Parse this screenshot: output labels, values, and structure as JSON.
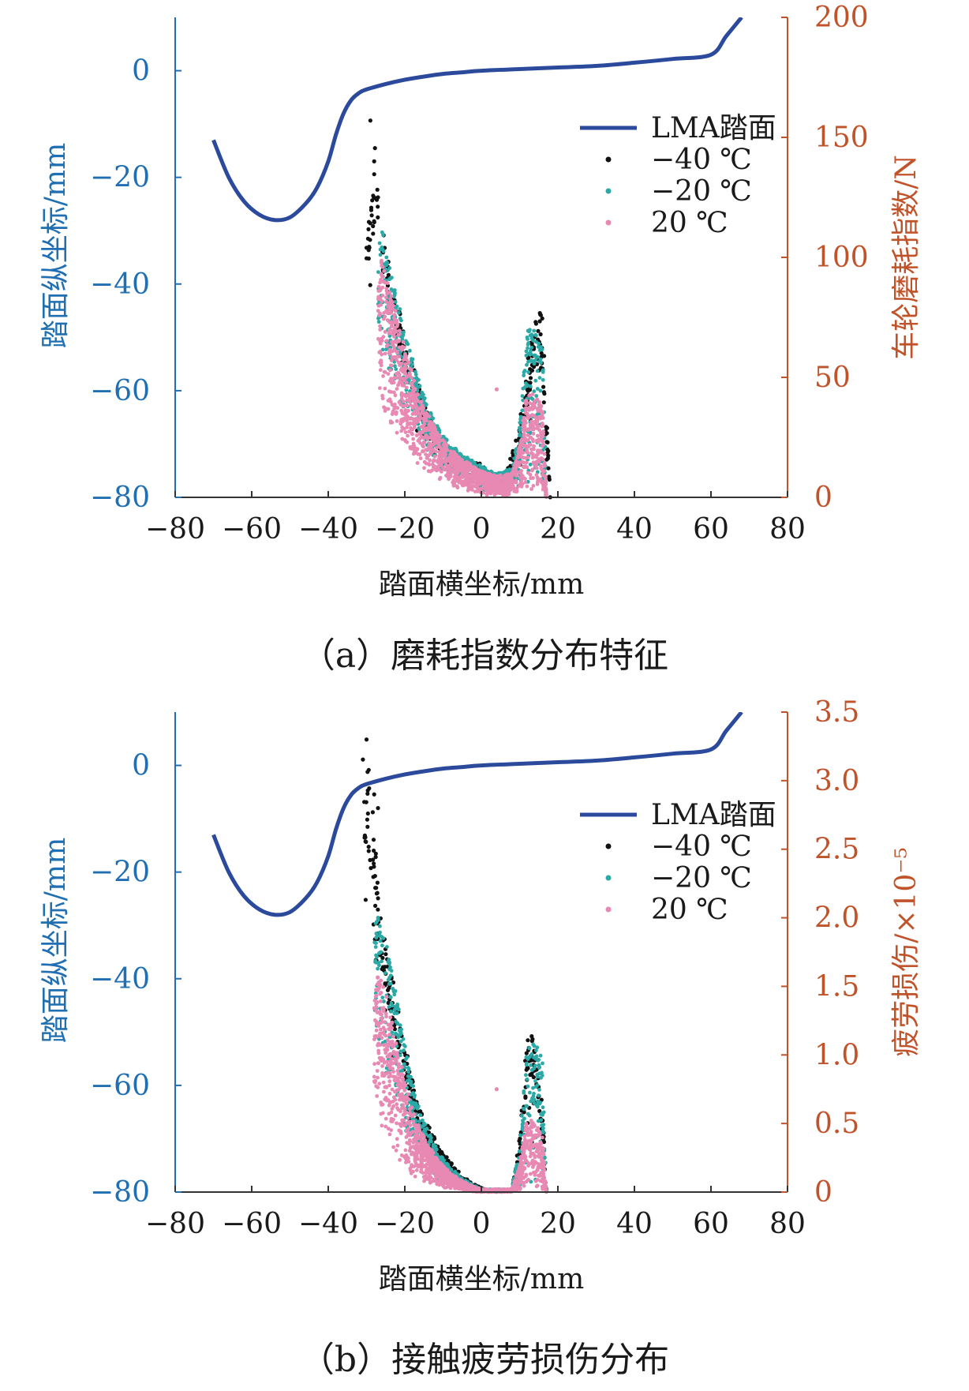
{
  "chart_data": [
    {
      "type": "line+scatter",
      "caption": "（a）磨耗指数分布特征",
      "xlabel": "踏面横坐标/mm",
      "ylabel_left": "踏面纵坐标/mm",
      "ylabel_right": "车轮磨耗指数/N",
      "xlim": [
        -80,
        80
      ],
      "ylim_left": [
        -80,
        10
      ],
      "ylim_right": [
        0,
        200
      ],
      "x_ticks": [
        "−80",
        "−60",
        "−40",
        "−20",
        "0",
        "20",
        "40",
        "60",
        "80"
      ],
      "y_left_ticks": [
        "0",
        "−20",
        "−40",
        "−60",
        "−80"
      ],
      "y_right_ticks": [
        "200",
        "150",
        "100",
        "50",
        "0"
      ],
      "legend": {
        "placement": "top-right",
        "entries": [
          "LMA踏面",
          "−40 ℃",
          "−20 ℃",
          "20 ℃"
        ]
      },
      "colors": {
        "profile": "#2b4a9c",
        "s40": "#111111",
        "s20": "#2aa9a6",
        "p20": "#e889b3",
        "left_axis": "#1f6fb2",
        "right_axis": "#c0532a"
      },
      "profile_series": {
        "name": "LMA踏面",
        "x": [
          -70,
          -66,
          -62,
          -58,
          -54,
          -50,
          -46,
          -43,
          -40,
          -38,
          -36,
          -34,
          -32,
          -30,
          -25,
          -20,
          -15,
          -10,
          -5,
          0,
          10,
          20,
          30,
          40,
          50,
          60,
          64,
          68
        ],
        "y": [
          -13,
          -20,
          -24.5,
          -27,
          -28,
          -27.5,
          -25,
          -22,
          -17,
          -12,
          -8,
          -5.5,
          -4.2,
          -3.5,
          -2.5,
          -1.7,
          -1.1,
          -0.6,
          -0.3,
          0,
          0.3,
          0.6,
          0.9,
          1.5,
          2.2,
          3,
          6.5,
          10
        ]
      },
      "scatter_series": [
        {
          "name": "−40 ℃",
          "envelope": {
            "x": [
              -30,
              -28,
              -26,
              -24,
              -22,
              -20,
              -17,
              -14,
              -11,
              -8,
              -5,
              -2,
              0,
              2,
              4,
              6,
              8,
              10,
              12,
              14,
              16,
              18
            ],
            "upper": [
              105,
              156,
              120,
              98,
              82,
              68,
              50,
              35,
              26,
              20,
              17,
              15,
              14,
              10,
              9,
              10,
              18,
              32,
              58,
              82,
              76,
              0
            ],
            "lower": [
              60,
              55,
              48,
              42,
              36,
              30,
              22,
              16,
              11,
              8,
              6,
              4,
              3,
              2,
              1.5,
              1.5,
              2,
              3,
              4,
              5,
              3,
              0
            ]
          }
        },
        {
          "name": "−20 ℃",
          "envelope": {
            "x": [
              -27,
              -26,
              -24,
              -22,
              -20,
              -17,
              -14,
              -11,
              -8,
              -5,
              -2,
              0,
              4,
              8,
              10,
              12,
              14,
              16,
              17
            ],
            "upper": [
              105,
              112,
              98,
              85,
              70,
              52,
              38,
              28,
              22,
              18,
              15,
              13,
              10,
              12,
              30,
              72,
              70,
              64,
              0
            ],
            "lower": [
              70,
              60,
              50,
              42,
              34,
              25,
              18,
              12,
              8,
              6,
              4,
              3,
              2,
              2,
              3,
              5,
              6,
              4,
              0
            ]
          }
        },
        {
          "name": "20 ℃",
          "envelope": {
            "x": [
              -27,
              -26,
              -24,
              -22,
              -20,
              -17,
              -14,
              -11,
              -8,
              -5,
              -2,
              0,
              4,
              8,
              10,
              12,
              14,
              16,
              17
            ],
            "upper": [
              85,
              100,
              88,
              75,
              62,
              47,
              35,
              26,
              20,
              16,
              13,
              11,
              9,
              10,
              22,
              45,
              44,
              38,
              0
            ],
            "lower": [
              40,
              35,
              30,
              25,
              20,
              14,
              10,
              7,
              5,
              3,
              2,
              1,
              0.5,
              0.5,
              1,
              2,
              3,
              2,
              0
            ]
          }
        }
      ]
    },
    {
      "type": "line+scatter",
      "caption": "（b）接触疲劳损伤分布",
      "xlabel": "踏面横坐标/mm",
      "ylabel_left": "踏面纵坐标/mm",
      "ylabel_right": "疲劳损伤/×10⁻⁵",
      "xlim": [
        -80,
        80
      ],
      "ylim_left": [
        -80,
        10
      ],
      "ylim_right": [
        0,
        3.5
      ],
      "x_ticks": [
        "−80",
        "−60",
        "−40",
        "−20",
        "0",
        "20",
        "40",
        "60",
        "80"
      ],
      "y_left_ticks": [
        "0",
        "−20",
        "−40",
        "−60",
        "−80"
      ],
      "y_right_ticks": [
        "3.5",
        "3.0",
        "2.5",
        "2.0",
        "1.5",
        "1.0",
        "0.5",
        "0"
      ],
      "legend": {
        "placement": "top-right",
        "entries": [
          "LMA踏面",
          "−40 ℃",
          "−20 ℃",
          "20 ℃"
        ]
      },
      "colors": {
        "profile": "#2b4a9c",
        "s40": "#111111",
        "s20": "#2aa9a6",
        "p20": "#e889b3",
        "left_axis": "#1f6fb2",
        "right_axis": "#c0532a"
      },
      "profile_series": {
        "name": "LMA踏面",
        "x": [
          -70,
          -66,
          -62,
          -58,
          -54,
          -50,
          -46,
          -43,
          -40,
          -38,
          -36,
          -34,
          -32,
          -30,
          -25,
          -20,
          -15,
          -10,
          -5,
          0,
          10,
          20,
          30,
          40,
          50,
          60,
          64,
          68
        ],
        "y": [
          -13,
          -20,
          -24.5,
          -27,
          -28,
          -27.5,
          -25,
          -22,
          -17,
          -12,
          -8,
          -5.5,
          -4.2,
          -3.5,
          -2.5,
          -1.7,
          -1.1,
          -0.6,
          -0.3,
          0,
          0.3,
          0.6,
          0.9,
          1.5,
          2.2,
          3,
          6.5,
          10
        ]
      },
      "scatter_series": [
        {
          "name": "−40 ℃",
          "envelope": {
            "x": [
              -31,
              -29,
              -27,
              -25,
              -23,
              -21,
              -19,
              -17,
              -14,
              -11,
              -8,
              -5,
              -2,
              0,
              2,
              4,
              6,
              8,
              10,
              12,
              14,
              16,
              17
            ],
            "upper": [
              3.2,
              3.05,
              2.25,
              1.85,
              1.55,
              1.25,
              0.95,
              0.7,
              0.5,
              0.32,
              0.22,
              0.12,
              0.06,
              0.03,
              0.01,
              0.01,
              0.01,
              0.01,
              0.4,
              1.2,
              1.25,
              0.6,
              0
            ],
            "lower": [
              1.6,
              1.2,
              0.95,
              0.75,
              0.6,
              0.45,
              0.3,
              0.2,
              0.12,
              0.08,
              0.05,
              0.03,
              0.01,
              0,
              0,
              0,
              0,
              0,
              0.02,
              0.05,
              0.05,
              0.03,
              0
            ]
          }
        },
        {
          "name": "−20 ℃",
          "envelope": {
            "x": [
              -28,
              -27,
              -25,
              -23,
              -21,
              -19,
              -17,
              -14,
              -11,
              -8,
              -5,
              -2,
              0,
              8,
              10,
              12,
              14,
              16,
              17
            ],
            "upper": [
              1.9,
              2.05,
              1.85,
              1.55,
              1.25,
              0.92,
              0.68,
              0.45,
              0.28,
              0.18,
              0.1,
              0.05,
              0.02,
              0.02,
              0.35,
              1.1,
              1.08,
              1.0,
              0
            ],
            "lower": [
              1.2,
              1.05,
              0.85,
              0.68,
              0.5,
              0.35,
              0.25,
              0.15,
              0.08,
              0.05,
              0.03,
              0.01,
              0,
              0,
              0.02,
              0.05,
              0.05,
              0.03,
              0
            ]
          }
        },
        {
          "name": "20 ℃",
          "envelope": {
            "x": [
              -28,
              -27,
              -25,
              -23,
              -21,
              -19,
              -17,
              -14,
              -11,
              -8,
              -5,
              -2,
              0,
              8,
              10,
              12,
              14,
              16,
              17
            ],
            "upper": [
              1.4,
              1.6,
              1.45,
              1.2,
              0.95,
              0.7,
              0.52,
              0.35,
              0.22,
              0.14,
              0.08,
              0.04,
              0.02,
              0.02,
              0.2,
              0.55,
              0.52,
              0.4,
              0
            ],
            "lower": [
              0.6,
              0.5,
              0.4,
              0.3,
              0.22,
              0.15,
              0.1,
              0.06,
              0.04,
              0.02,
              0.01,
              0,
              0,
              0,
              0.01,
              0.02,
              0.02,
              0.01,
              0
            ]
          }
        }
      ]
    }
  ]
}
